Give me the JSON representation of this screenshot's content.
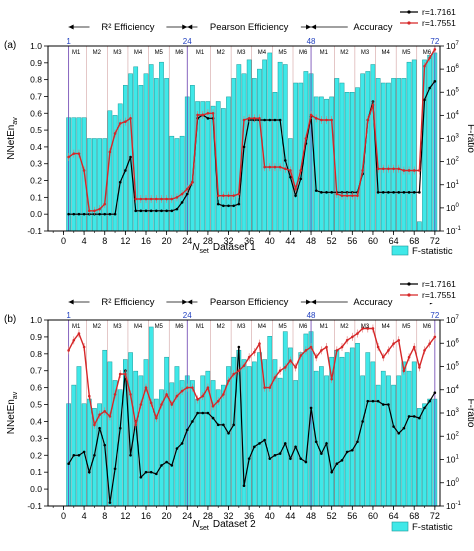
{
  "chart_data": [
    {
      "type": "bar",
      "panel_label": "(a)",
      "xlabel_main": "N",
      "xlabel_sub": "set",
      "xlabel_suffix": "Dataset 1",
      "ylabel_left_main": "NNetEn",
      "ylabel_left_sub": "av",
      "ylabel_right": "F-ratio",
      "xlim": [
        -3,
        73
      ],
      "ylim_left": [
        -0.1,
        1.0
      ],
      "ylim_right_log10": [
        -1,
        7
      ],
      "x_ticks": [
        0,
        4,
        8,
        12,
        16,
        20,
        24,
        28,
        32,
        36,
        40,
        44,
        48,
        52,
        56,
        60,
        64,
        68,
        72
      ],
      "y_ticks_left": [
        "-0.1",
        "0.0",
        "0.1",
        "0.2",
        "0.3",
        "0.4",
        "0.5",
        "0.6",
        "0.7",
        "0.8",
        "0.9",
        "1.0"
      ],
      "y_ticks_right": [
        "10",
        "10",
        "10",
        "10",
        "10",
        "10",
        "10",
        "10",
        "10"
      ],
      "y_ticks_right_exp": [
        "-1",
        "0",
        "1",
        "2",
        "3",
        "4",
        "5",
        "6",
        "7"
      ],
      "section_labels": [
        {
          "text": "R² Efficiency",
          "from": 1,
          "to": 24
        },
        {
          "text": "Pearson Efficiency",
          "from": 24,
          "to": 48
        },
        {
          "text": "Accuracy",
          "from": 48,
          "to": 72
        }
      ],
      "section_markers": [
        "1",
        "24",
        "48",
        "72"
      ],
      "method_labels": [
        "M1",
        "M2",
        "M3",
        "M4",
        "M5",
        "M6"
      ],
      "grid": false,
      "legend": {
        "position": "top-right",
        "entries": [
          "r=1.7161",
          "r=1.7551"
        ]
      },
      "bar_legend": "F-statistic",
      "series": [
        {
          "name": "r=1.7161",
          "color": "#000000",
          "values": [
            0.0,
            0.0,
            0.0,
            0.0,
            0.0,
            0.0,
            0.0,
            0.0,
            0.0,
            0.0,
            0.19,
            0.26,
            0.34,
            0.02,
            0.02,
            0.02,
            0.02,
            0.02,
            0.02,
            0.02,
            0.02,
            0.03,
            0.07,
            0.12,
            0.19,
            0.57,
            0.59,
            0.57,
            0.57,
            0.06,
            0.05,
            0.05,
            0.05,
            0.06,
            0.4,
            0.56,
            0.56,
            0.56,
            0.56,
            0.56,
            0.56,
            0.56,
            0.32,
            0.22,
            0.11,
            0.21,
            0.42,
            0.58,
            0.14,
            0.13,
            0.13,
            0.13,
            0.13,
            0.13,
            0.13,
            0.13,
            0.13,
            0.24,
            0.56,
            0.67,
            0.13,
            0.13,
            0.13,
            0.13,
            0.13,
            0.13,
            0.13,
            0.13,
            0.13,
            0.68,
            0.75,
            0.79
          ]
        },
        {
          "name": "r=1.7551",
          "color": "#d62728",
          "values": [
            0.34,
            0.36,
            0.36,
            0.26,
            0.02,
            0.02,
            0.03,
            0.06,
            0.37,
            0.48,
            0.54,
            0.55,
            0.57,
            0.09,
            0.09,
            0.09,
            0.09,
            0.09,
            0.09,
            0.09,
            0.09,
            0.1,
            0.12,
            0.15,
            0.19,
            0.59,
            0.59,
            0.6,
            0.6,
            0.11,
            0.11,
            0.11,
            0.11,
            0.12,
            0.56,
            0.57,
            0.57,
            0.57,
            0.28,
            0.28,
            0.28,
            0.28,
            0.27,
            0.26,
            0.15,
            0.26,
            0.45,
            0.59,
            0.57,
            0.56,
            0.56,
            0.56,
            0.12,
            0.11,
            0.11,
            0.11,
            0.11,
            0.26,
            0.56,
            0.65,
            0.27,
            0.27,
            0.27,
            0.27,
            0.27,
            0.26,
            0.26,
            0.26,
            0.26,
            0.88,
            0.93,
            0.98
          ]
        }
      ],
      "bars_log10": [
        3.9,
        3.9,
        3.9,
        3.9,
        3.0,
        3.0,
        3.0,
        3.0,
        4.2,
        4.0,
        4.5,
        5.3,
        5.8,
        6.1,
        5.3,
        5.8,
        6.2,
        5.6,
        6.3,
        5.6,
        3.1,
        3.0,
        3.1,
        4.8,
        5.3,
        4.6,
        4.6,
        4.6,
        4.4,
        4.6,
        4.3,
        4.8,
        5.6,
        6.2,
        5.8,
        6.4,
        5.6,
        6.0,
        6.4,
        6.7,
        5.0,
        6.3,
        6.2,
        3.0,
        5.4,
        5.4,
        5.9,
        5.8,
        4.8,
        4.8,
        4.7,
        4.8,
        5.6,
        5.4,
        5.0,
        5.0,
        5.2,
        5.8,
        5.9,
        6.2,
        5.6,
        5.4,
        5.4,
        5.6,
        5.6,
        5.6,
        6.3,
        6.4,
        -0.6,
        6.4,
        6.6,
        6.7
      ]
    },
    {
      "type": "bar",
      "panel_label": "(b)",
      "xlabel_main": "N",
      "xlabel_sub": "set",
      "xlabel_suffix": "Dataset 2",
      "ylabel_left_main": "NNetEn",
      "ylabel_left_sub": "av",
      "ylabel_right": "F-ratio",
      "xlim": [
        -3,
        73
      ],
      "ylim_left": [
        -0.1,
        1.0
      ],
      "ylim_right_log10": [
        -1,
        7
      ],
      "x_ticks": [
        0,
        4,
        8,
        12,
        16,
        20,
        24,
        28,
        32,
        36,
        40,
        44,
        48,
        52,
        56,
        60,
        64,
        68,
        72
      ],
      "y_ticks_left": [
        "-0.1",
        "0.0",
        "0.1",
        "0.2",
        "0.3",
        "0.4",
        "0.5",
        "0.6",
        "0.7",
        "0.8",
        "0.9",
        "1.0"
      ],
      "y_ticks_right": [
        "10",
        "10",
        "10",
        "10",
        "10",
        "10",
        "10",
        "10",
        "10"
      ],
      "y_ticks_right_exp": [
        "-1",
        "0",
        "1",
        "2",
        "3",
        "4",
        "5",
        "6",
        "7"
      ],
      "section_labels": [
        {
          "text": "R² Efficiency",
          "from": 1,
          "to": 24
        },
        {
          "text": "Pearson Efficiency",
          "from": 24,
          "to": 48
        },
        {
          "text": "Accuracy",
          "from": 48,
          "to": 72
        }
      ],
      "section_markers": [
        "1",
        "24",
        "48",
        "72"
      ],
      "method_labels": [
        "M1",
        "M2",
        "M3",
        "M4",
        "M5",
        "M6"
      ],
      "grid": false,
      "legend": {
        "position": "top-right",
        "entries": [
          "r=1.7161",
          "r=1.7551"
        ]
      },
      "bar_legend": "F-statistic",
      "series": [
        {
          "name": "r=1.7161",
          "color": "#000000",
          "values": [
            0.15,
            0.2,
            0.2,
            0.22,
            0.1,
            0.2,
            0.36,
            0.26,
            -0.08,
            0.12,
            0.36,
            0.7,
            0.2,
            0.4,
            0.07,
            0.1,
            0.1,
            0.09,
            0.14,
            0.16,
            0.14,
            0.24,
            0.27,
            0.35,
            0.4,
            0.45,
            0.45,
            0.45,
            0.42,
            0.38,
            0.38,
            0.33,
            0.38,
            0.84,
            0.02,
            0.18,
            0.25,
            0.27,
            0.29,
            0.18,
            0.2,
            0.21,
            0.27,
            0.18,
            0.25,
            0.18,
            0.16,
            0.48,
            0.28,
            0.21,
            0.27,
            0.1,
            0.15,
            0.17,
            0.22,
            0.23,
            0.28,
            0.4,
            0.52,
            0.52,
            0.52,
            0.5,
            0.5,
            0.37,
            0.33,
            0.36,
            0.43,
            0.43,
            0.42,
            0.48,
            0.52,
            0.57
          ]
        },
        {
          "name": "r=1.7551",
          "color": "#d62728",
          "values": [
            0.82,
            0.88,
            0.92,
            0.84,
            0.55,
            0.38,
            0.44,
            0.46,
            0.43,
            0.56,
            0.68,
            0.68,
            0.56,
            0.38,
            0.5,
            0.6,
            0.51,
            0.42,
            0.5,
            0.56,
            0.5,
            0.55,
            0.58,
            0.6,
            0.6,
            0.53,
            0.55,
            0.6,
            0.49,
            0.52,
            0.56,
            0.64,
            0.68,
            0.7,
            0.73,
            0.78,
            0.81,
            0.86,
            0.6,
            0.6,
            0.66,
            0.7,
            0.72,
            0.76,
            0.72,
            0.79,
            0.82,
            0.84,
            0.78,
            0.82,
            0.84,
            0.65,
            0.82,
            0.84,
            0.88,
            0.9,
            0.92,
            0.95,
            0.95,
            0.95,
            0.84,
            0.78,
            0.82,
            0.86,
            0.88,
            0.7,
            0.78,
            0.84,
            0.72,
            0.82,
            0.86,
            0.9
          ]
        }
      ],
      "bars_log10": [
        3.4,
        4.2,
        5.0,
        3.4,
        3.6,
        3.2,
        3.4,
        5.7,
        5.2,
        4.4,
        4.0,
        5.3,
        5.6,
        4.8,
        4.6,
        5.3,
        6.7,
        3.6,
        4.0,
        5.4,
        4.3,
        5.0,
        4.4,
        4.6,
        4.4,
        3.6,
        4.6,
        4.8,
        4.4,
        4.0,
        4.2,
        5.0,
        5.4,
        5.7,
        5.3,
        5.0,
        5.2,
        5.6,
        5.3,
        6.3,
        5.3,
        4.5,
        6.5,
        5.8,
        4.4,
        5.6,
        6.4,
        6.5,
        4.8,
        5.0,
        4.6,
        5.4,
        5.7,
        5.4,
        5.6,
        5.8,
        6.0,
        4.6,
        5.6,
        5.2,
        4.2,
        4.8,
        4.6,
        4.2,
        4.6,
        5.2,
        4.8,
        5.2,
        3.2,
        3.4,
        3.6,
        3.6
      ]
    }
  ]
}
